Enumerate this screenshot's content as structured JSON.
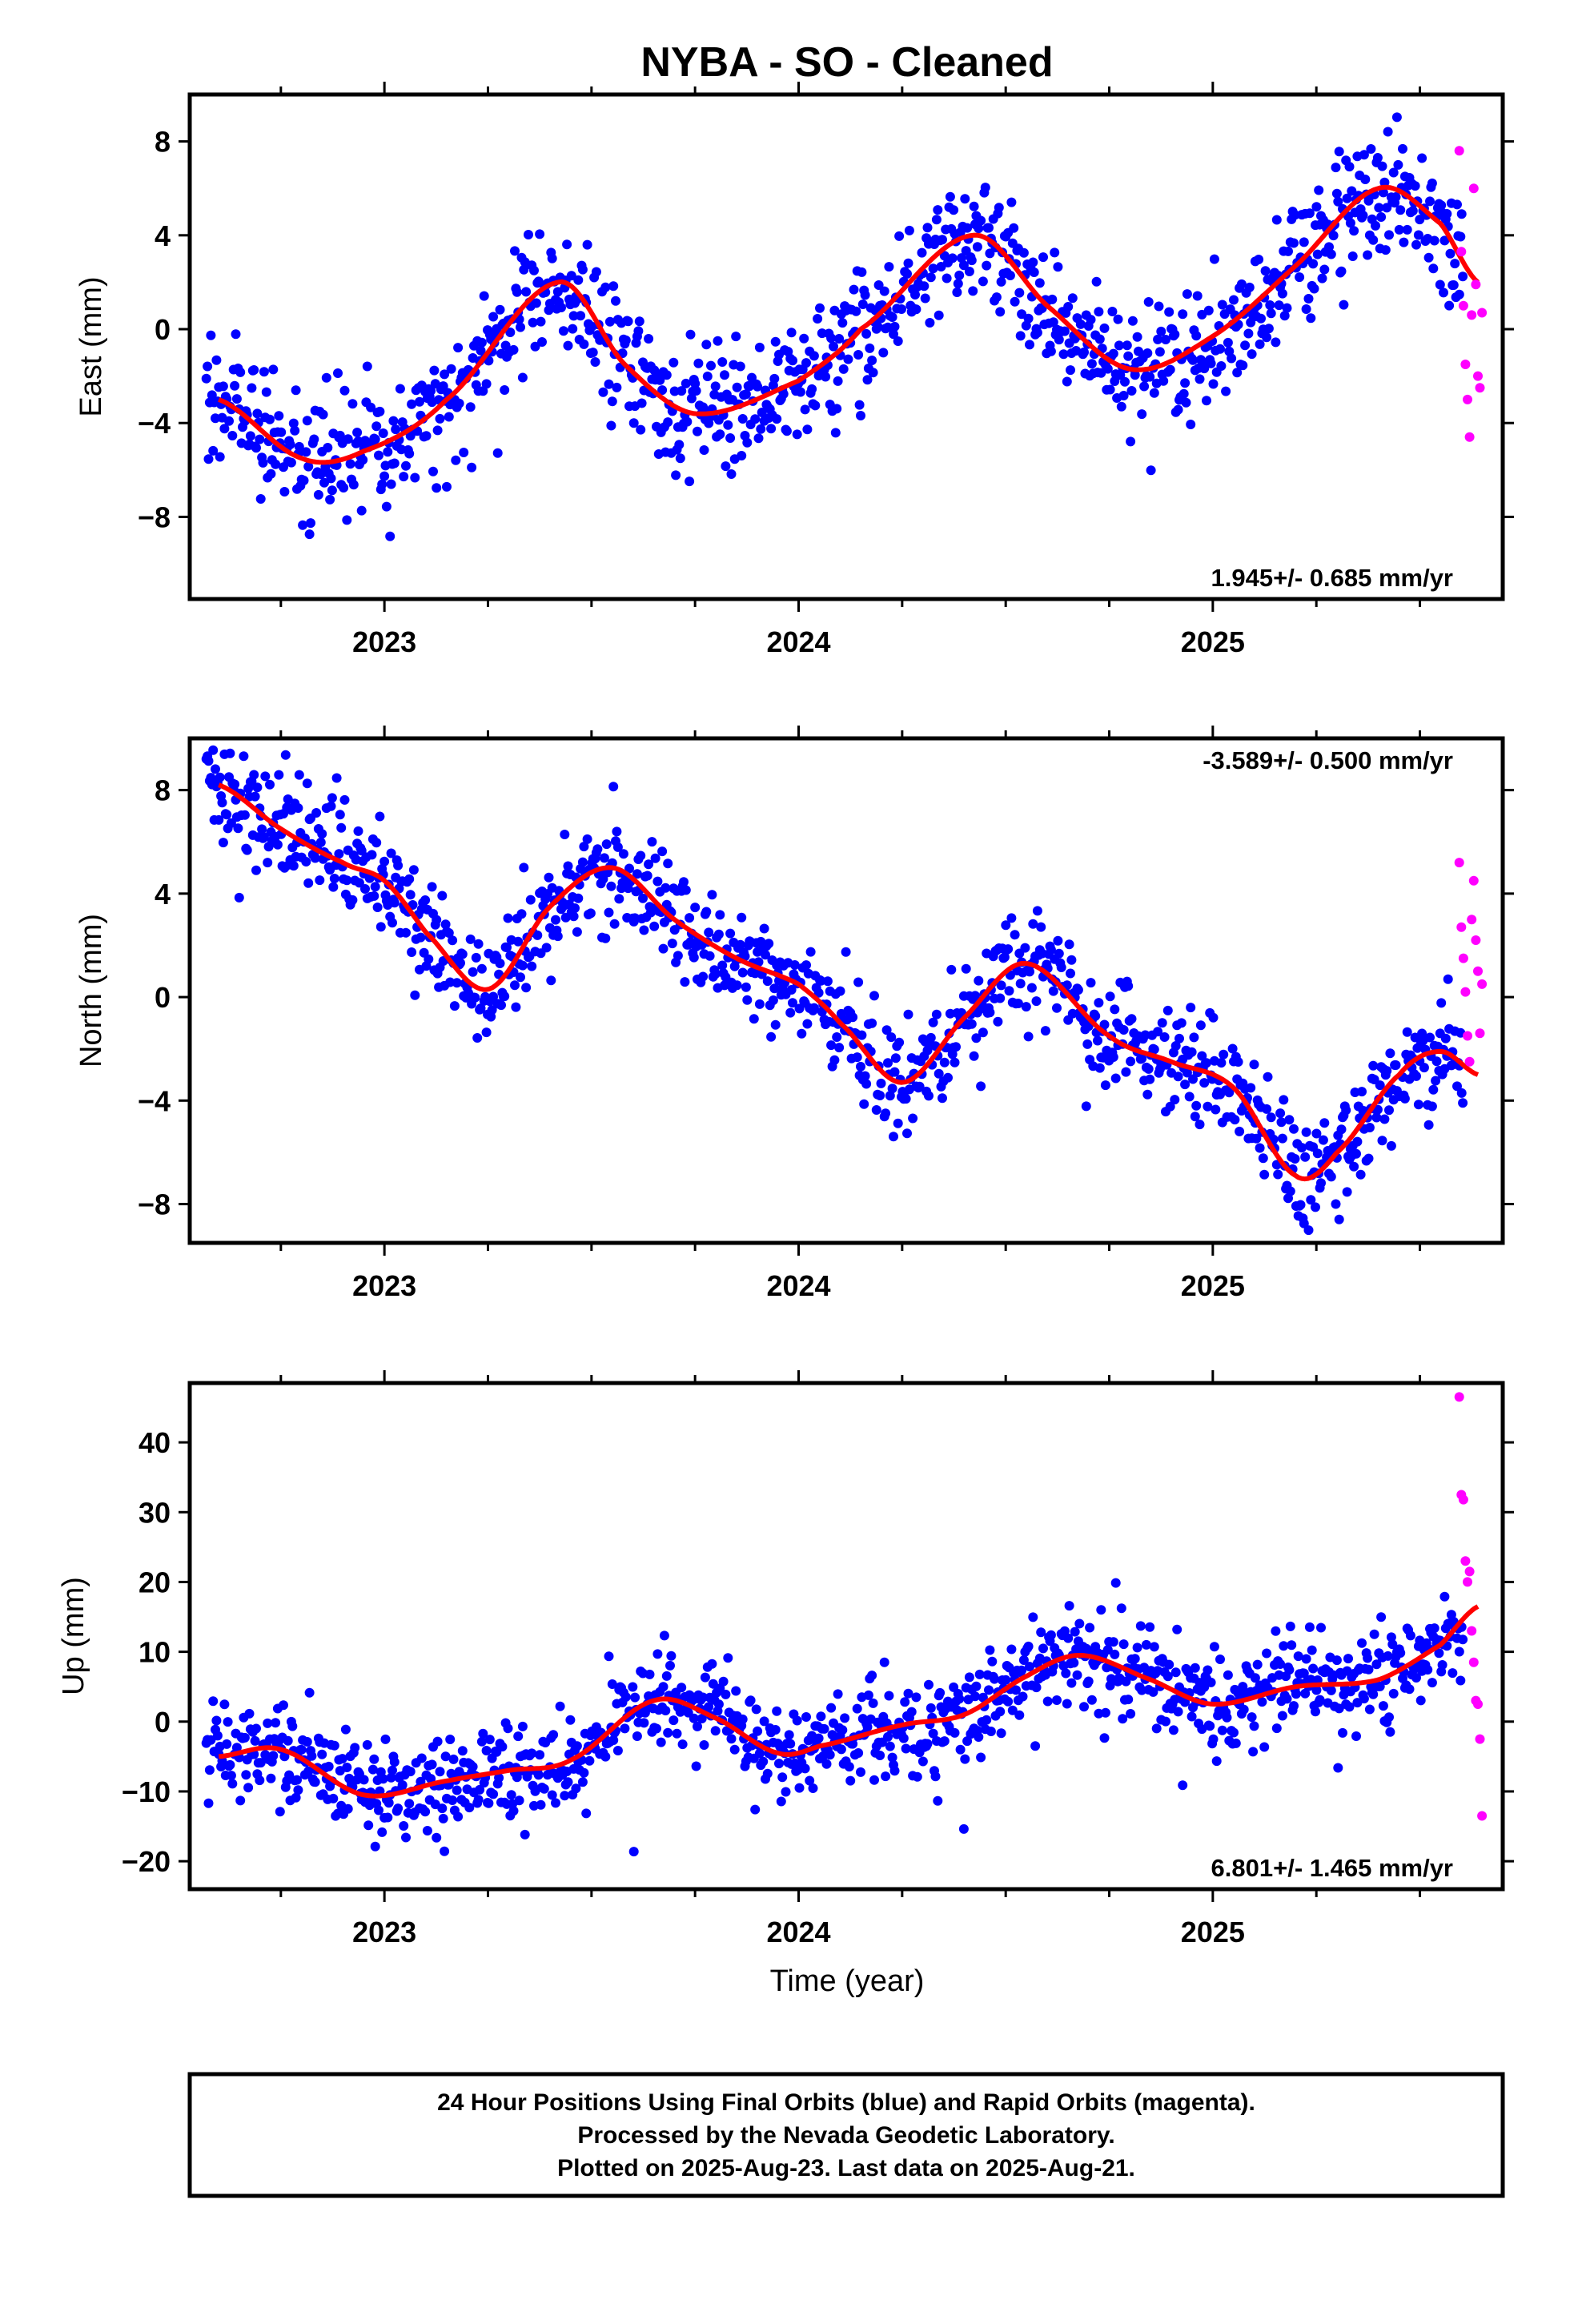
{
  "title": "NYBA  - SO - Cleaned",
  "xlabel": "Time (year)",
  "footer": {
    "line1": "24 Hour Positions Using Final Orbits (blue) and Rapid Orbits (magenta).",
    "line2": "Processed by the Nevada Geodetic Laboratory.",
    "line3": "Plotted on 2025-Aug-23. Last data on 2025-Aug-21."
  },
  "colors": {
    "final": "#0000ff",
    "rapid": "#ff00ff",
    "model": "#ff0000",
    "frame": "#000000"
  },
  "chart_data": [
    {
      "type": "scatter",
      "component": "East",
      "ylabel": "East (mm)",
      "rate_label": "1.945+/- 0.685 mm/yr",
      "xlim": [
        2022.53,
        2025.7
      ],
      "ylim": [
        -11.5,
        10
      ],
      "yticks": [
        "8",
        "4",
        "0",
        "−4",
        "−8"
      ],
      "ytick_values": [
        8,
        4,
        0,
        -4,
        -8
      ],
      "xticks": [
        "2023",
        "2024",
        "2025"
      ],
      "xtick_values": [
        2023,
        2024,
        2025
      ],
      "model_x": [
        2022.6,
        2022.8,
        2022.95,
        2023.15,
        2023.42,
        2023.58,
        2023.75,
        2024.0,
        2024.15,
        2024.42,
        2024.6,
        2024.8,
        2025.0,
        2025.2,
        2025.4,
        2025.55,
        2025.64
      ],
      "model_y": [
        -3.0,
        -5.5,
        -5.2,
        -3.0,
        2.0,
        -1.5,
        -3.6,
        -2.2,
        0.0,
        4.0,
        1.0,
        -1.7,
        -0.3,
        2.7,
        6.0,
        4.5,
        2.0
      ],
      "noise": 1.3,
      "rapid": [
        [
          2025.595,
          7.6
        ],
        [
          2025.6,
          3.3
        ],
        [
          2025.605,
          1.0
        ],
        [
          2025.61,
          -1.5
        ],
        [
          2025.615,
          -3.0
        ],
        [
          2025.62,
          -4.6
        ],
        [
          2025.625,
          0.6
        ],
        [
          2025.63,
          6.0
        ],
        [
          2025.635,
          1.9
        ],
        [
          2025.64,
          -2.0
        ],
        [
          2025.645,
          -2.5
        ],
        [
          2025.65,
          0.7
        ]
      ]
    },
    {
      "type": "scatter",
      "component": "North",
      "ylabel": "North (mm)",
      "rate_label": "-3.589+/- 0.500 mm/yr",
      "xlim": [
        2022.53,
        2025.7
      ],
      "ylim": [
        -9.5,
        10
      ],
      "yticks": [
        "8",
        "4",
        "0",
        "−4",
        "−8"
      ],
      "ytick_values": [
        8,
        4,
        0,
        -4,
        -8
      ],
      "xticks": [
        "2023",
        "2024",
        "2025"
      ],
      "xtick_values": [
        2023,
        2024,
        2025
      ],
      "model_x": [
        2022.6,
        2022.75,
        2022.9,
        2023.0,
        2023.1,
        2023.25,
        2023.4,
        2023.55,
        2023.7,
        2023.85,
        2024.0,
        2024.1,
        2024.25,
        2024.4,
        2024.55,
        2024.75,
        2024.9,
        2025.05,
        2025.2,
        2025.3,
        2025.45,
        2025.55,
        2025.64
      ],
      "model_y": [
        8.2,
        6.5,
        5.2,
        4.5,
        2.5,
        0.3,
        3.5,
        5.0,
        3.0,
        1.5,
        0.5,
        -1.0,
        -3.3,
        -0.8,
        1.3,
        -1.5,
        -2.5,
        -3.5,
        -6.9,
        -6.0,
        -3.0,
        -2.1,
        -3.0
      ],
      "noise": 1.0,
      "rapid": [
        [
          2025.595,
          5.2
        ],
        [
          2025.6,
          2.7
        ],
        [
          2025.605,
          1.5
        ],
        [
          2025.61,
          0.2
        ],
        [
          2025.615,
          -1.5
        ],
        [
          2025.62,
          -2.5
        ],
        [
          2025.625,
          3.0
        ],
        [
          2025.63,
          4.5
        ],
        [
          2025.635,
          2.2
        ],
        [
          2025.64,
          1.0
        ],
        [
          2025.645,
          -1.4
        ],
        [
          2025.65,
          0.5
        ]
      ]
    },
    {
      "type": "scatter",
      "component": "Up",
      "ylabel": "Up (mm)",
      "rate_label": "6.801+/- 1.465 mm/yr",
      "xlim": [
        2022.53,
        2025.7
      ],
      "ylim": [
        -24,
        48.5
      ],
      "yticks": [
        "40",
        "30",
        "20",
        "10",
        "0",
        "−10",
        "−20"
      ],
      "ytick_values": [
        40,
        30,
        20,
        10,
        0,
        -10,
        -20
      ],
      "xticks": [
        "2023",
        "2024",
        "2025"
      ],
      "xtick_values": [
        2023,
        2024,
        2025
      ],
      "model_x": [
        2022.6,
        2022.75,
        2022.95,
        2023.15,
        2023.3,
        2023.45,
        2023.65,
        2023.8,
        2023.95,
        2024.05,
        2024.25,
        2024.4,
        2024.55,
        2024.68,
        2024.85,
        2025.0,
        2025.2,
        2025.4,
        2025.55,
        2025.64
      ],
      "model_y": [
        -5.0,
        -4.0,
        -10.5,
        -8.5,
        -7.0,
        -5.5,
        3.0,
        0.5,
        -4.5,
        -3.5,
        -0.5,
        1.0,
        6.5,
        9.5,
        6.0,
        2.5,
        5.0,
        6.0,
        11.0,
        16.5
      ],
      "noise": 3.4,
      "rapid": [
        [
          2025.595,
          46.5
        ],
        [
          2025.6,
          32.5
        ],
        [
          2025.605,
          31.8
        ],
        [
          2025.61,
          23.0
        ],
        [
          2025.615,
          20.0
        ],
        [
          2025.62,
          21.5
        ],
        [
          2025.625,
          13.0
        ],
        [
          2025.63,
          8.5
        ],
        [
          2025.635,
          3.0
        ],
        [
          2025.64,
          2.5
        ],
        [
          2025.645,
          -2.5
        ],
        [
          2025.65,
          -13.5
        ]
      ]
    }
  ]
}
